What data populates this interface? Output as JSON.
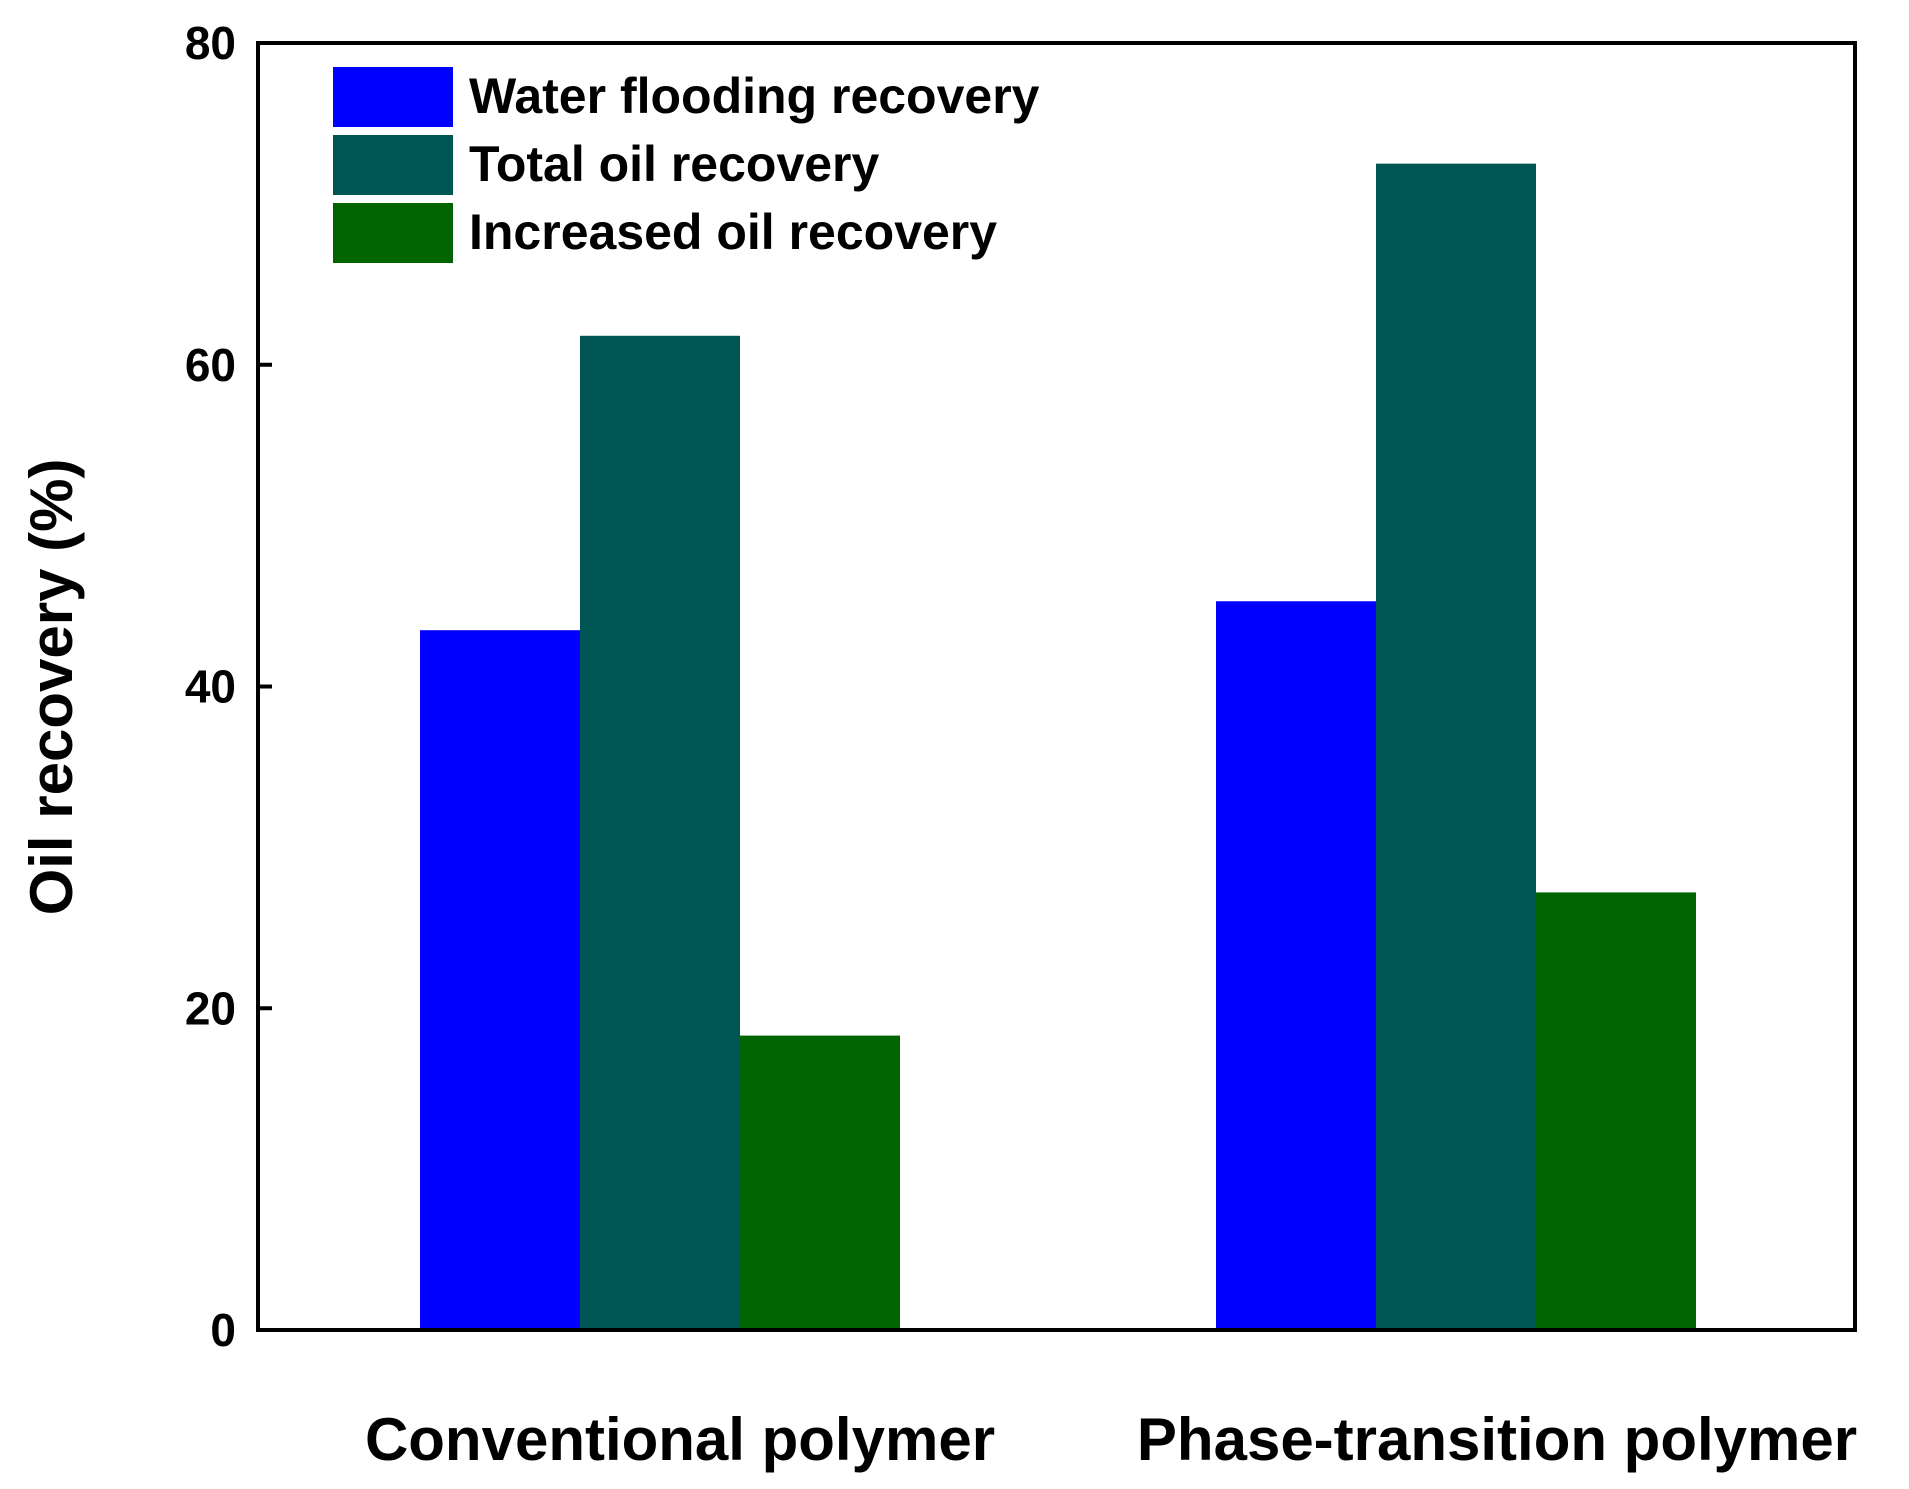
{
  "chart_data": {
    "type": "bar",
    "title": "",
    "xlabel": "",
    "ylabel": "Oil recovery (%)",
    "ylim": [
      0,
      80
    ],
    "yticks": [
      0,
      20,
      40,
      60,
      80
    ],
    "grid": false,
    "legend_position": "top-left",
    "categories": [
      "Conventional polymer",
      "Phase-transition polymer"
    ],
    "series": [
      {
        "name": "Water flooding recovery",
        "color": "#0000ff",
        "values": [
          43.5,
          45.3
        ]
      },
      {
        "name": "Total oil recovery",
        "color": "#005555",
        "values": [
          61.8,
          72.5
        ]
      },
      {
        "name": "Increased oil recovery",
        "color": "#006400",
        "values": [
          18.3,
          27.2
        ]
      }
    ]
  }
}
